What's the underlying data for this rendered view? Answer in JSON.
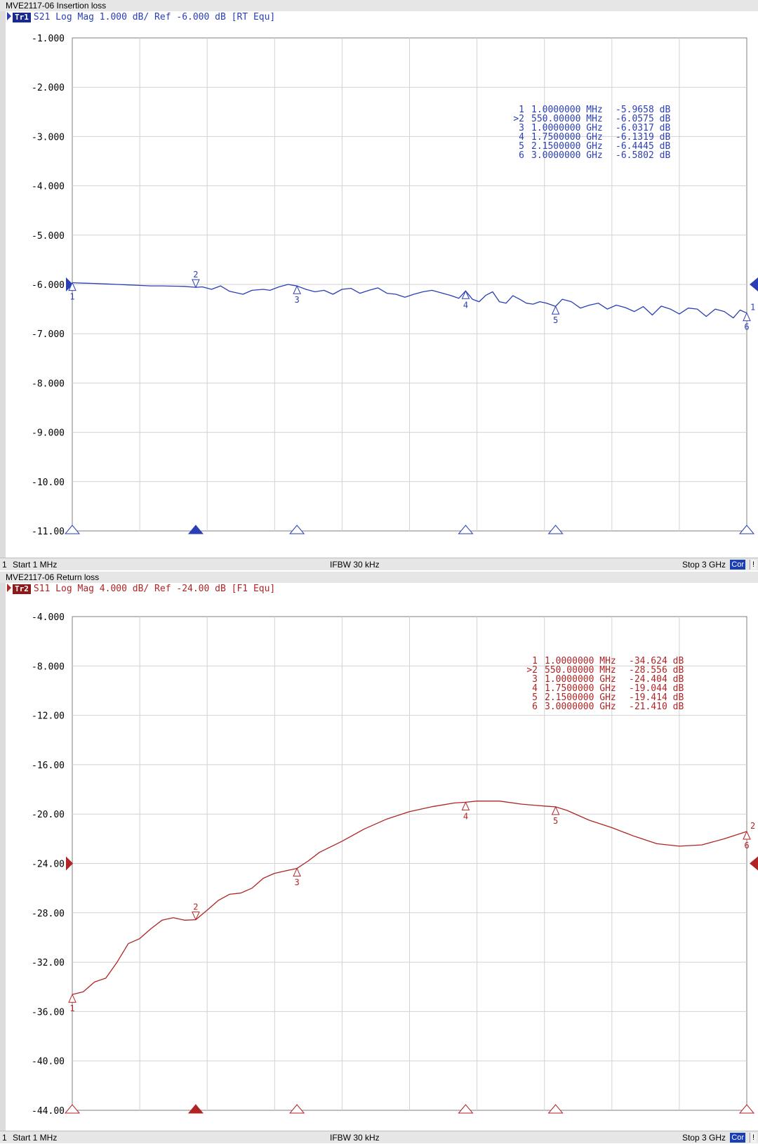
{
  "chart_data": [
    {
      "type": "line",
      "title": "MVE2117-06 Insertion loss",
      "trace_badge": "Tr1",
      "trace_info": "S21 Log Mag 1.000 dB/ Ref -6.000 dB [RT Equ]",
      "color": "#2a3fb4",
      "ylim": [
        -11,
        -1
      ],
      "ref_value": -6,
      "yticks": [
        -1,
        -2,
        -3,
        -4,
        -5,
        -6,
        -7,
        -8,
        -9,
        -10,
        -11
      ],
      "ytick_labels": [
        "-1.000",
        "-2.000",
        "-3.000",
        "-4.000",
        "-5.000",
        "-6.000",
        "-7.000",
        "-8.000",
        "-9.000",
        "-10.00",
        "-11.00"
      ],
      "xlim_mhz": [
        1,
        3000
      ],
      "x_mhz": [
        1,
        50,
        100,
        150,
        200,
        250,
        300,
        350,
        400,
        450,
        500,
        550,
        580,
        620,
        660,
        700,
        760,
        800,
        850,
        880,
        920,
        960,
        1000,
        1040,
        1080,
        1120,
        1160,
        1200,
        1240,
        1280,
        1320,
        1360,
        1400,
        1440,
        1480,
        1520,
        1560,
        1600,
        1640,
        1680,
        1720,
        1750,
        1780,
        1810,
        1840,
        1870,
        1900,
        1930,
        1960,
        1990,
        2020,
        2050,
        2080,
        2110,
        2150,
        2180,
        2220,
        2260,
        2300,
        2340,
        2380,
        2420,
        2460,
        2500,
        2540,
        2580,
        2620,
        2660,
        2700,
        2740,
        2780,
        2820,
        2860,
        2900,
        2940,
        2970,
        3000
      ],
      "y_db": [
        -5.966,
        -5.975,
        -5.98,
        -5.99,
        -6.0,
        -6.01,
        -6.02,
        -6.03,
        -6.03,
        -6.035,
        -6.04,
        -6.058,
        -6.05,
        -6.1,
        -6.03,
        -6.14,
        -6.2,
        -6.12,
        -6.1,
        -6.12,
        -6.05,
        -6.0,
        -6.032,
        -6.1,
        -6.15,
        -6.12,
        -6.2,
        -6.1,
        -6.08,
        -6.18,
        -6.12,
        -6.07,
        -6.18,
        -6.2,
        -6.26,
        -6.2,
        -6.15,
        -6.12,
        -6.17,
        -6.22,
        -6.28,
        -6.132,
        -6.3,
        -6.35,
        -6.22,
        -6.15,
        -6.35,
        -6.38,
        -6.23,
        -6.3,
        -6.38,
        -6.4,
        -6.35,
        -6.38,
        -6.445,
        -6.3,
        -6.35,
        -6.48,
        -6.42,
        -6.38,
        -6.5,
        -6.42,
        -6.47,
        -6.55,
        -6.45,
        -6.62,
        -6.44,
        -6.5,
        -6.6,
        -6.48,
        -6.5,
        -6.65,
        -6.5,
        -6.55,
        -6.68,
        -6.52,
        -6.58
      ],
      "markers": [
        {
          "num": "1",
          "freq_mhz": 1,
          "db": -5.966,
          "label_below": true
        },
        {
          "num": "2",
          "freq_mhz": 550,
          "db": -6.058,
          "label_below": false
        },
        {
          "num": "3",
          "freq_mhz": 1000,
          "db": -6.032,
          "label_below": true
        },
        {
          "num": "4",
          "freq_mhz": 1750,
          "db": -6.132,
          "label_below": true
        },
        {
          "num": "5",
          "freq_mhz": 2150,
          "db": -6.445,
          "label_below": true
        },
        {
          "num": "6",
          "freq_mhz": 3000,
          "db": -6.58,
          "label_below": true
        }
      ],
      "marker_table": [
        {
          "num": "1",
          "freq": "1.0000000 MHz",
          "value": "-5.9658 dB"
        },
        {
          "num": ">2",
          "freq": "550.00000 MHz",
          "value": "-6.0575 dB"
        },
        {
          "num": "3",
          "freq": "1.0000000 GHz",
          "value": "-6.0317 dB"
        },
        {
          "num": "4",
          "freq": "1.7500000 GHz",
          "value": "-6.1319 dB"
        },
        {
          "num": "5",
          "freq": "2.1500000 GHz",
          "value": "-6.4445 dB"
        },
        {
          "num": "6",
          "freq": "3.0000000 GHz",
          "value": "-6.5802 dB"
        }
      ],
      "right_edge_label": "1",
      "footer": {
        "channel": "1",
        "start": "Start 1 MHz",
        "ifbw": "IFBW 30 kHz",
        "stop": "Stop 3 GHz",
        "cor": "Cor",
        "flag": "!"
      }
    },
    {
      "type": "line",
      "title": "MVE2117-06 Return loss",
      "trace_badge": "Tr2",
      "trace_info": "S11 Log Mag 4.000 dB/ Ref -24.00 dB [F1 Equ]",
      "color": "#b02424",
      "ylim": [
        -44,
        -4
      ],
      "ref_value": -24,
      "yticks": [
        -4,
        -8,
        -12,
        -16,
        -20,
        -24,
        -28,
        -32,
        -36,
        -40,
        -44
      ],
      "ytick_labels": [
        "-4.000",
        "-8.000",
        "-12.00",
        "-16.00",
        "-20.00",
        "-24.00",
        "-28.00",
        "-32.00",
        "-36.00",
        "-40.00",
        "-44.00"
      ],
      "xlim_mhz": [
        1,
        3000
      ],
      "x_mhz": [
        1,
        50,
        100,
        150,
        200,
        250,
        300,
        350,
        400,
        450,
        500,
        550,
        600,
        650,
        700,
        750,
        800,
        850,
        900,
        950,
        1000,
        1050,
        1100,
        1200,
        1300,
        1400,
        1500,
        1600,
        1700,
        1750,
        1800,
        1900,
        2000,
        2100,
        2150,
        2200,
        2300,
        2400,
        2500,
        2600,
        2700,
        2800,
        2900,
        3000
      ],
      "y_db": [
        -34.62,
        -34.4,
        -33.6,
        -33.3,
        -32.0,
        -30.5,
        -30.1,
        -29.3,
        -28.6,
        -28.4,
        -28.6,
        -28.556,
        -27.8,
        -27.0,
        -26.5,
        -26.4,
        -26.0,
        -25.2,
        -24.8,
        -24.6,
        -24.404,
        -23.8,
        -23.1,
        -22.2,
        -21.2,
        -20.4,
        -19.8,
        -19.4,
        -19.1,
        -19.044,
        -18.95,
        -18.95,
        -19.2,
        -19.35,
        -19.414,
        -19.7,
        -20.5,
        -21.1,
        -21.8,
        -22.4,
        -22.6,
        -22.5,
        -22.0,
        -21.41
      ],
      "markers": [
        {
          "num": "1",
          "freq_mhz": 1,
          "db": -34.624,
          "label_below": true
        },
        {
          "num": "2",
          "freq_mhz": 550,
          "db": -28.556,
          "label_below": false
        },
        {
          "num": "3",
          "freq_mhz": 1000,
          "db": -24.404,
          "label_below": true
        },
        {
          "num": "4",
          "freq_mhz": 1750,
          "db": -19.044,
          "label_below": true
        },
        {
          "num": "5",
          "freq_mhz": 2150,
          "db": -19.414,
          "label_below": true
        },
        {
          "num": "6",
          "freq_mhz": 3000,
          "db": -21.41,
          "label_below": true
        }
      ],
      "marker_table": [
        {
          "num": "1",
          "freq": "1.0000000 MHz",
          "value": "-34.624 dB"
        },
        {
          "num": ">2",
          "freq": "550.00000 MHz",
          "value": "-28.556 dB"
        },
        {
          "num": "3",
          "freq": "1.0000000 GHz",
          "value": "-24.404 dB"
        },
        {
          "num": "4",
          "freq": "1.7500000 GHz",
          "value": "-19.044 dB"
        },
        {
          "num": "5",
          "freq": "2.1500000 GHz",
          "value": "-19.414 dB"
        },
        {
          "num": "6",
          "freq": "3.0000000 GHz",
          "value": "-21.410 dB"
        }
      ],
      "right_edge_label": "2",
      "footer": {
        "channel": "1",
        "start": "Start 1 MHz",
        "ifbw": "IFBW 30 kHz",
        "stop": "Stop 3 GHz",
        "cor": "Cor",
        "flag": "!"
      }
    }
  ]
}
